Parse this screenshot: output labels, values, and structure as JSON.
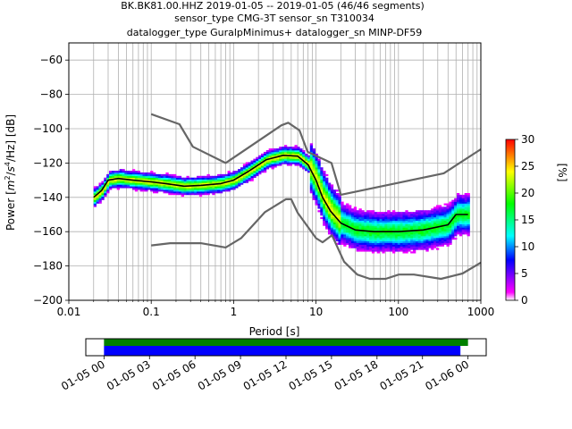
{
  "title": {
    "line1": "BK.BK81.00.HHZ   2019-01-05 -- 2019-01-05  (46/46 segments)",
    "line2": "sensor_type CMG-3T sensor_sn T310034",
    "line3": "datalogger_type GuralpMinimus+ datalogger_sn MINP-DF59"
  },
  "chart_data": {
    "type": "heatmap",
    "xlabel": "Period [s]",
    "ylabel": "Power [m²/s⁴/Hz] [dB]",
    "ylabel_parts": {
      "pre": "Power [",
      "base_m": "m",
      "exp_2": "2",
      "slash1": "/",
      "base_s": "s",
      "exp_4": "4",
      "slash2": "/Hz] [dB]"
    },
    "xscale": "log",
    "xlim": [
      0.01,
      1000
    ],
    "ylim": [
      -200,
      -50
    ],
    "grid": true,
    "x_ticks": [
      {
        "value": 0.01,
        "label": "0.01"
      },
      {
        "value": 0.1,
        "label": "0.1"
      },
      {
        "value": 1,
        "label": "1"
      },
      {
        "value": 10,
        "label": "10"
      },
      {
        "value": 100,
        "label": "100"
      },
      {
        "value": 1000,
        "label": "1000"
      }
    ],
    "y_ticks": [
      {
        "value": -60,
        "label": "−60"
      },
      {
        "value": -80,
        "label": "−80"
      },
      {
        "value": -100,
        "label": "−100"
      },
      {
        "value": -120,
        "label": "−120"
      },
      {
        "value": -140,
        "label": "−140"
      },
      {
        "value": -160,
        "label": "−160"
      },
      {
        "value": -180,
        "label": "−180"
      },
      {
        "value": -200,
        "label": "−200"
      }
    ],
    "nhnm": {
      "x": [
        0.1,
        0.22,
        0.32,
        0.8,
        3.8,
        4.6,
        6.3,
        7.9,
        15.4,
        20,
        354.8,
        1000
      ],
      "y": [
        -91.5,
        -97.4,
        -110.5,
        -120,
        -98,
        -96.5,
        -101,
        -113.5,
        -120,
        -138.5,
        -126,
        -112
      ]
    },
    "nlnm": {
      "x": [
        0.1,
        0.17,
        0.4,
        0.8,
        1.24,
        2.4,
        4.3,
        5,
        6,
        10,
        12,
        15.6,
        21.9,
        31.6,
        45,
        70,
        101,
        154,
        328,
        600,
        1000
      ],
      "y": [
        -168,
        -166.7,
        -166.7,
        -169.2,
        -163.7,
        -148.6,
        -141.1,
        -141.1,
        -149,
        -163.8,
        -166.2,
        -162.1,
        -177.5,
        -185,
        -187.5,
        -187.5,
        -185,
        -185,
        -187.5,
        -184.4,
        -178
      ]
    },
    "mean_curve": {
      "x": [
        0.02,
        0.025,
        0.03,
        0.04,
        0.06,
        0.1,
        0.15,
        0.25,
        0.4,
        0.7,
        1.0,
        1.5,
        2.5,
        4.0,
        6.0,
        8.0,
        10,
        12,
        15,
        20,
        30,
        50,
        100,
        200,
        400,
        500,
        600,
        700
      ],
      "y": [
        -140,
        -136,
        -130,
        -129,
        -130,
        -131,
        -132,
        -133.5,
        -133,
        -132,
        -130,
        -125,
        -118,
        -115.5,
        -116,
        -121,
        -130,
        -140,
        -148,
        -155,
        -159,
        -160,
        -160,
        -159,
        -156,
        -150,
        -150,
        -150
      ]
    },
    "percentile_colorbar": {
      "label": "[%]",
      "min": 0,
      "max": 30,
      "ticks": [
        {
          "value": 0,
          "label": "0"
        },
        {
          "value": 5,
          "label": "5"
        },
        {
          "value": 10,
          "label": "10"
        },
        {
          "value": 15,
          "label": "15"
        },
        {
          "value": 20,
          "label": "20"
        },
        {
          "value": 25,
          "label": "25"
        },
        {
          "value": 30,
          "label": "30"
        }
      ],
      "colors": [
        "#ffffff",
        "#ff00ff",
        "#0000ff",
        "#00ffff",
        "#00ff00",
        "#ffff00",
        "#ff0000"
      ]
    },
    "time_coverage": {
      "x_ticks": [
        {
          "hour": 0,
          "label": "01-05 00"
        },
        {
          "hour": 3,
          "label": "01-05 03"
        },
        {
          "hour": 6,
          "label": "01-05 06"
        },
        {
          "hour": 9,
          "label": "01-05 09"
        },
        {
          "hour": 12,
          "label": "01-05 12"
        },
        {
          "hour": 15,
          "label": "01-05 15"
        },
        {
          "hour": 18,
          "label": "01-05 18"
        },
        {
          "hour": 21,
          "label": "01-05 21"
        },
        {
          "hour": 24,
          "label": "01-06 00"
        }
      ],
      "range_hours": [
        -1.2,
        25.2
      ],
      "data_bar": {
        "start_hour": 0,
        "end_hour": 24,
        "color": "#008000"
      },
      "psd_bar": {
        "start_hour": 0,
        "end_hour": 23.5,
        "color": "#0000ff"
      }
    }
  }
}
